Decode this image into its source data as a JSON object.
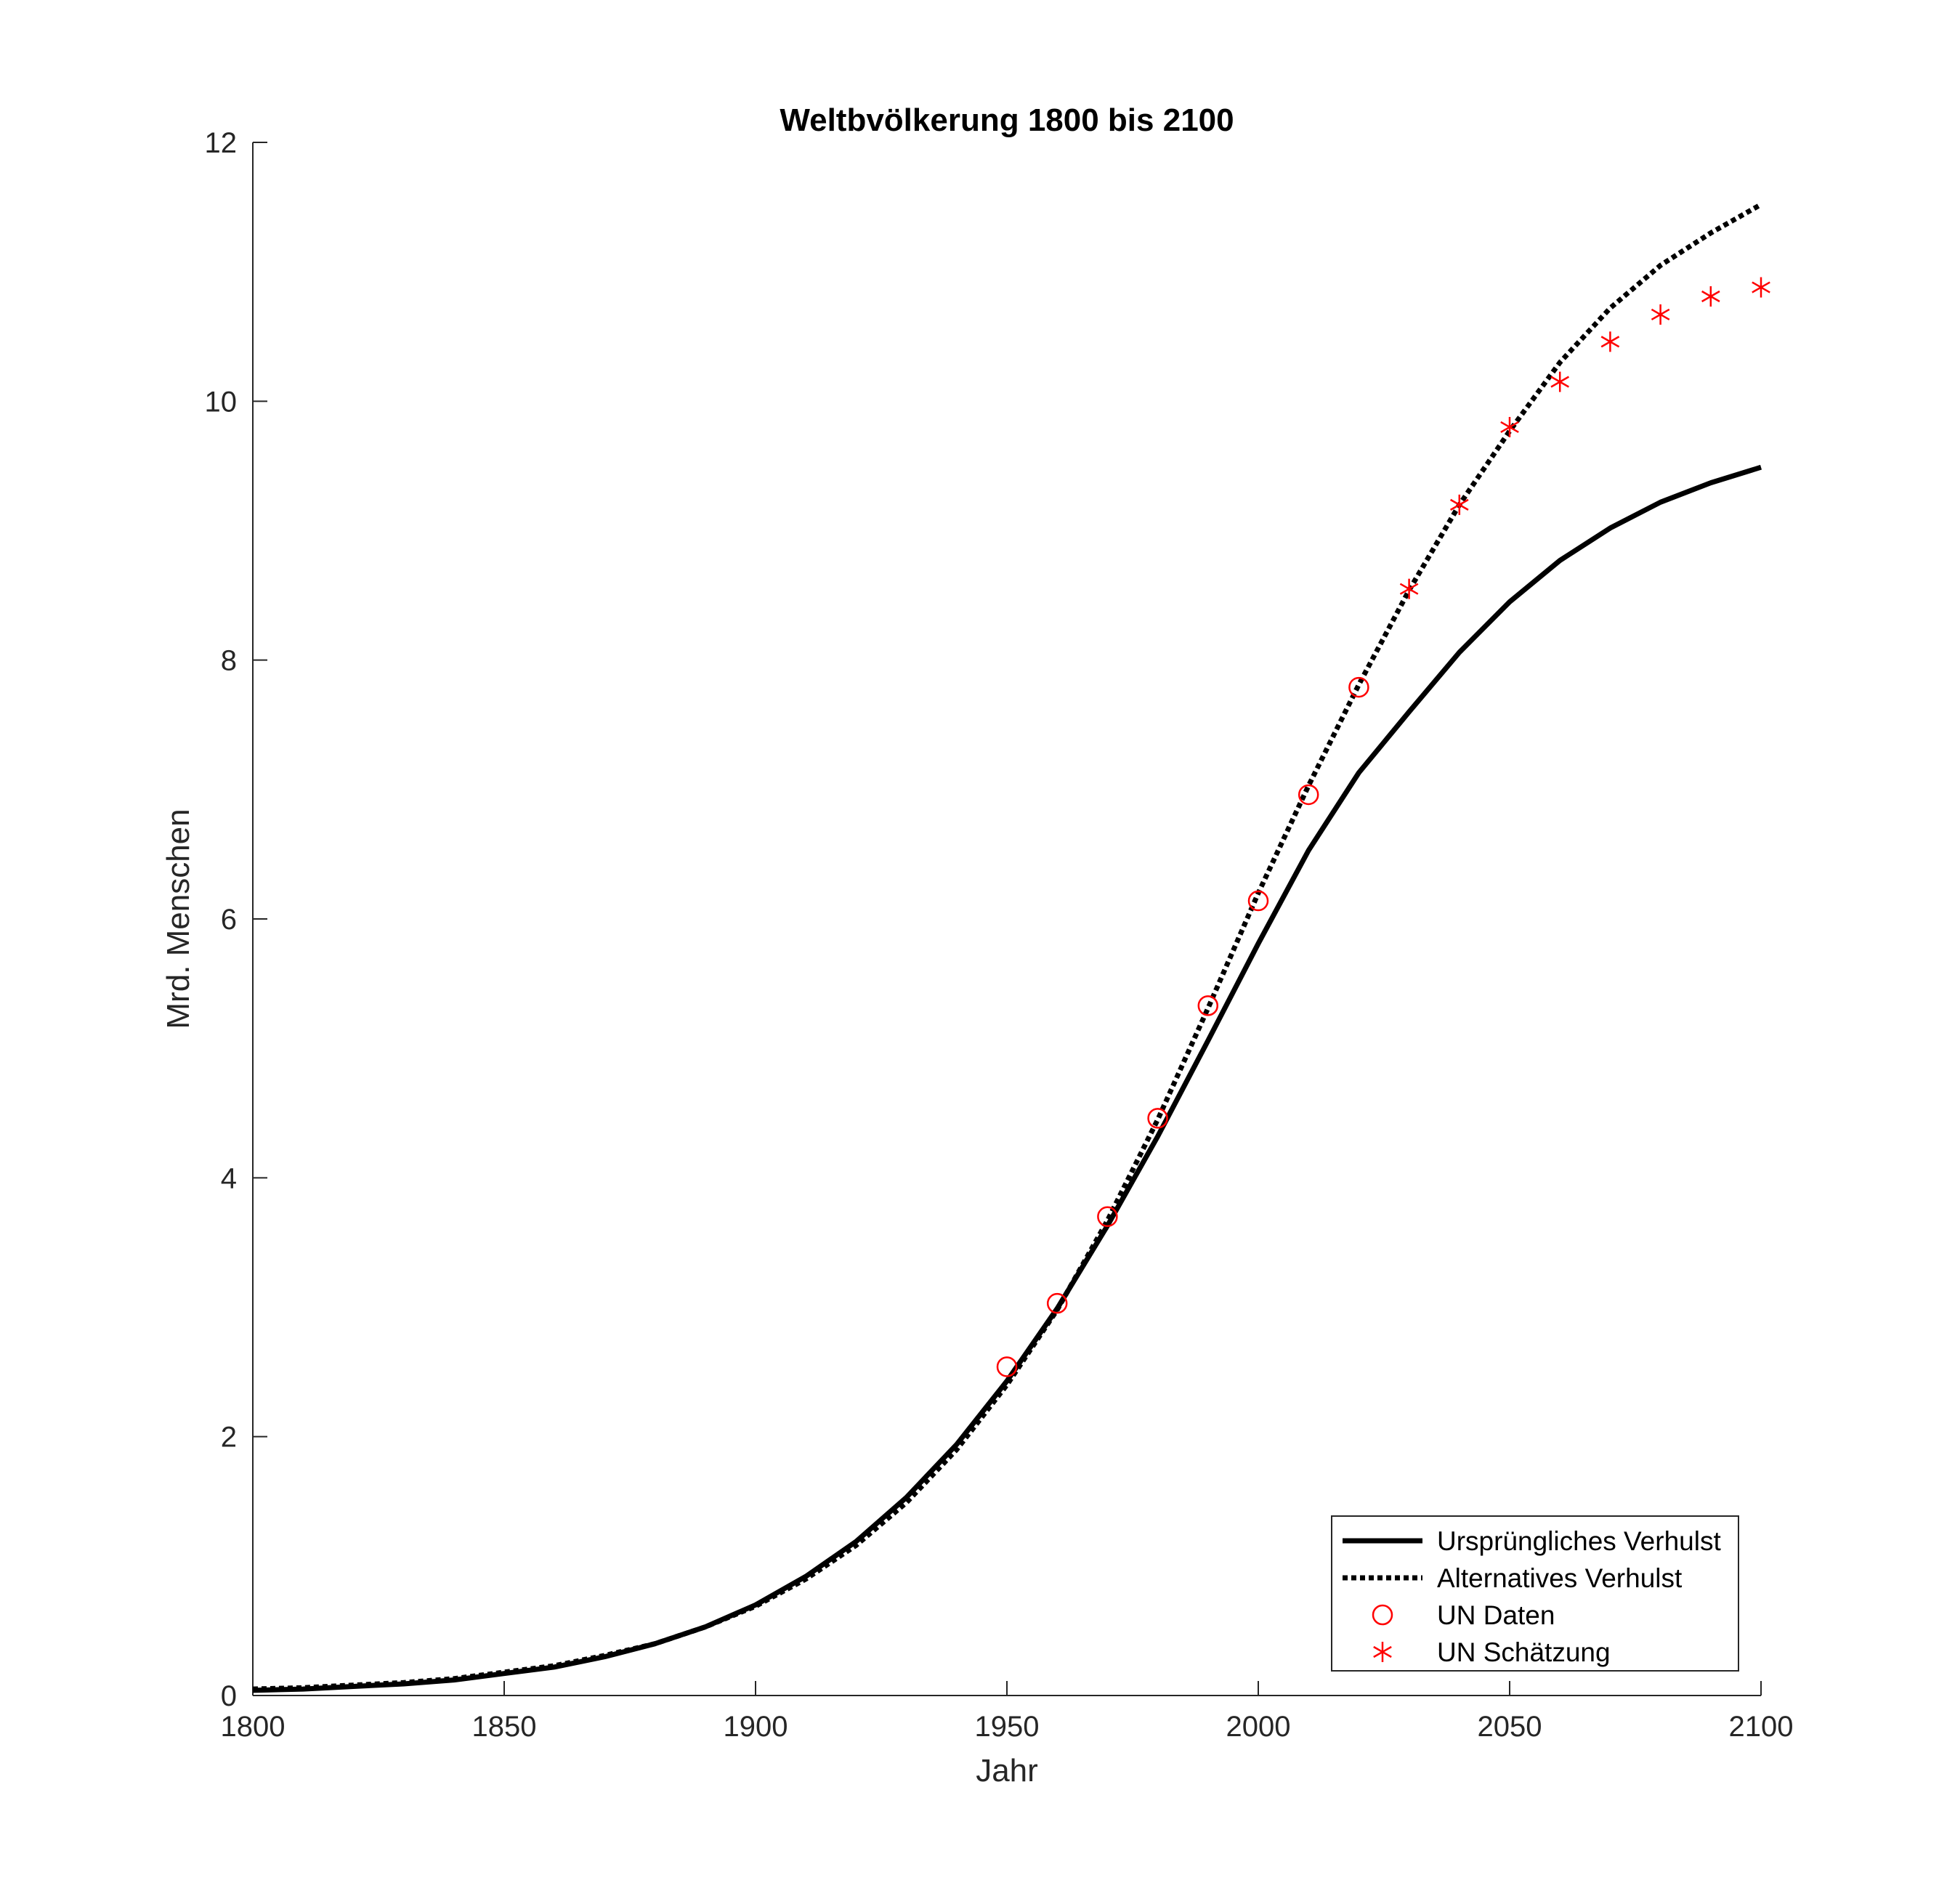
{
  "chart_data": {
    "type": "line",
    "title": "Weltbvölkerung 1800 bis 2100",
    "xlabel": "Jahr",
    "ylabel": "Mrd. Menschen",
    "xlim": [
      1800,
      2100
    ],
    "ylim": [
      0,
      12
    ],
    "xticks": [
      1800,
      1850,
      1900,
      1950,
      2000,
      2050,
      2100
    ],
    "yticks": [
      0,
      2,
      4,
      6,
      8,
      10,
      12
    ],
    "grid": false,
    "legend_position": "bottom-right",
    "series": [
      {
        "name": "Ursprüngliches Verhulst",
        "style": "solid",
        "color": "#000000",
        "x": [
          1800,
          1810,
          1820,
          1830,
          1840,
          1850,
          1860,
          1870,
          1880,
          1890,
          1900,
          1910,
          1920,
          1930,
          1940,
          1950,
          1960,
          1970,
          1980,
          1990,
          2000,
          2010,
          2020,
          2030,
          2040,
          2050,
          2060,
          2070,
          2080,
          2090,
          2100
        ],
        "y": [
          0.04,
          0.05,
          0.07,
          0.09,
          0.12,
          0.17,
          0.22,
          0.3,
          0.4,
          0.53,
          0.7,
          0.92,
          1.19,
          1.53,
          1.94,
          2.43,
          2.99,
          3.63,
          4.32,
          5.06,
          5.81,
          6.53,
          7.13,
          7.6,
          8.06,
          8.45,
          8.77,
          9.02,
          9.22,
          9.37,
          9.49
        ]
      },
      {
        "name": "Alternatives Verhulst",
        "style": "dotted",
        "color": "#000000",
        "x": [
          1800,
          1810,
          1820,
          1830,
          1840,
          1850,
          1860,
          1870,
          1880,
          1890,
          1900,
          1910,
          1920,
          1930,
          1940,
          1950,
          1960,
          1970,
          1980,
          1990,
          2000,
          2010,
          2020,
          2030,
          2040,
          2050,
          2060,
          2070,
          2080,
          2090,
          2100
        ],
        "y": [
          0.05,
          0.06,
          0.08,
          0.1,
          0.13,
          0.18,
          0.23,
          0.31,
          0.4,
          0.53,
          0.69,
          0.9,
          1.16,
          1.49,
          1.9,
          2.4,
          2.98,
          3.67,
          4.45,
          5.31,
          6.2,
          7.03,
          7.81,
          8.54,
          9.2,
          9.77,
          10.3,
          10.72,
          11.05,
          11.3,
          11.52
        ]
      },
      {
        "name": "UN Daten",
        "style": "marker-circle",
        "color": "#ff0000",
        "x": [
          1950,
          1960,
          1970,
          1980,
          1990,
          2000,
          2010,
          2020
        ],
        "y": [
          2.54,
          3.03,
          3.7,
          4.46,
          5.33,
          6.14,
          6.96,
          7.79
        ]
      },
      {
        "name": "UN Schätzung",
        "style": "marker-asterisk",
        "color": "#ff0000",
        "x": [
          2030,
          2040,
          2050,
          2060,
          2070,
          2080,
          2090,
          2100
        ],
        "y": [
          8.55,
          9.2,
          9.8,
          10.15,
          10.46,
          10.67,
          10.81,
          10.88
        ]
      }
    ]
  }
}
